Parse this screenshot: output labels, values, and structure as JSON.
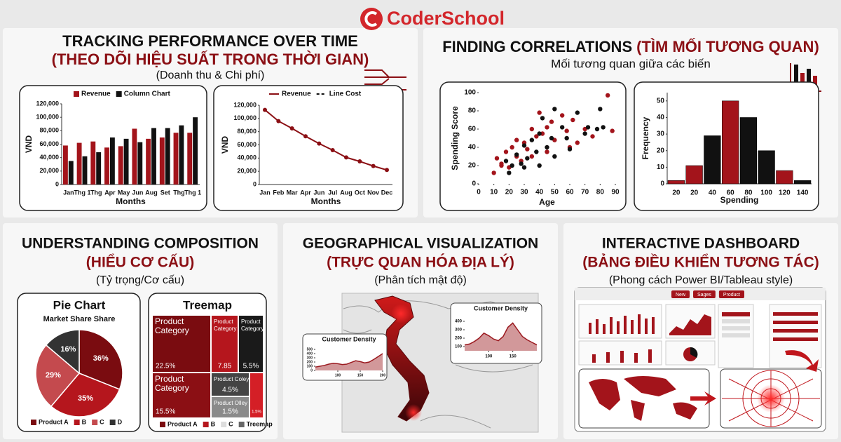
{
  "brand": "CoderSchool",
  "sections": [
    {
      "title": "TRACKING PERFORMANCE OVER TIME",
      "subtitle": "(THEO DÕI HIỆU SUẤT TRONG THỜI GIAN)",
      "caption": "(Doanh thu & Chi phí)"
    },
    {
      "title": "FINDING CORRELATIONS",
      "subtitle": "(TÌM MỐI TƯƠNG QUAN)",
      "caption": "Mối tương quan giữa các biến"
    },
    {
      "title": "UNDERSTANDING COMPOSITION",
      "subtitle": "(HIỂU CƠ CẤU)",
      "caption": "(Tỷ trọng/Cơ cấu)"
    },
    {
      "title": "GEOGRAPHICAL VISUALIZATION",
      "subtitle": "(TRỰC QUAN HÓA ĐỊA LÝ)",
      "caption": "(Phân tích mật độ)"
    },
    {
      "title": "INTERACTIVE DASHBOARD",
      "subtitle": "(BẢNG ĐIỀU KHIỂN TƯƠNG TÁC)",
      "caption": "(Phong cách Power BI/Tableau style)"
    }
  ],
  "dashboard": {
    "buttons": [
      "New",
      "Sages",
      "Product"
    ]
  },
  "chart_data": [
    {
      "type": "bar",
      "xlabel": "Months",
      "ylabel": "VND",
      "categories": [
        "Jan",
        "Thg 1",
        "Thg",
        "Apr",
        "May",
        "Jun",
        "Aug",
        "Set",
        "Thg",
        "Thg 1"
      ],
      "series": [
        {
          "name": "Revenue",
          "color": "#a3141b",
          "values": [
            58000,
            62000,
            64000,
            55000,
            57000,
            83000,
            68000,
            70000,
            77000,
            77000
          ]
        },
        {
          "name": "Column Chart",
          "color": "#111111",
          "values": [
            35000,
            42000,
            48000,
            70000,
            68000,
            63000,
            84000,
            84000,
            88000,
            100000
          ]
        }
      ],
      "ylim": [
        0,
        120000
      ],
      "yticks": [
        0,
        {
          "value": 20000,
          "label": "20,000"
        },
        {
          "value": 40000,
          "label": "40,000"
        },
        {
          "value": 60000,
          "label": "60,000"
        },
        {
          "value": 80000,
          "label": "80,000"
        },
        {
          "value": 100000,
          "label": "100,000"
        },
        {
          "value": 120000,
          "label": "120,000"
        }
      ]
    },
    {
      "type": "line",
      "xlabel": "Months",
      "ylabel": "VND",
      "categories": [
        "Jan",
        "Feb",
        "Mar",
        "Apr",
        "Jun",
        "Jul",
        "Aug",
        "Oct",
        "Nov",
        "Dec"
      ],
      "values": [
        113000,
        96000,
        85000,
        73000,
        62000,
        52000,
        41000,
        35000,
        28000,
        22000
      ],
      "color": "#8b0f14",
      "legend": [
        {
          "name": "Revenue",
          "style": "solid"
        },
        {
          "name": "Line Cost",
          "style": "dashed"
        }
      ],
      "ylim": [
        0,
        120000
      ],
      "yticks": [
        0,
        {
          "value": 20000,
          "label": "20,000"
        },
        {
          "value": 40000,
          "label": "40,000"
        },
        {
          "value": 60000,
          "label": "60,000"
        },
        {
          "value": 80000,
          "label": "80,000"
        },
        {
          "value": 100000,
          "label": "100,000"
        },
        {
          "value": 120000,
          "label": "120,000"
        }
      ]
    },
    {
      "type": "scatter",
      "xlabel": "Age",
      "ylabel": "Spending Score",
      "series": [
        {
          "color": "#a3141b",
          "x": [
            10,
            12,
            15,
            18,
            20,
            22,
            25,
            28,
            30,
            32,
            35,
            38,
            40,
            42,
            45,
            48,
            50,
            55,
            58,
            60,
            62,
            65,
            70,
            75,
            85,
            88,
            25,
            35,
            45,
            15
          ],
          "y": [
            12,
            28,
            22,
            35,
            18,
            40,
            30,
            25,
            45,
            38,
            60,
            52,
            78,
            55,
            35,
            68,
            48,
            75,
            58,
            40,
            70,
            45,
            60,
            52,
            97,
            58,
            48,
            30,
            62,
            20
          ]
        },
        {
          "color": "#111111",
          "x": [
            18,
            20,
            22,
            25,
            28,
            30,
            32,
            35,
            38,
            40,
            42,
            45,
            48,
            50,
            55,
            58,
            60,
            65,
            70,
            72,
            78,
            80,
            82,
            30,
            40,
            50
          ],
          "y": [
            25,
            12,
            20,
            32,
            22,
            42,
            28,
            48,
            35,
            55,
            72,
            40,
            50,
            82,
            62,
            50,
            38,
            78,
            55,
            62,
            60,
            82,
            62,
            18,
            20,
            30
          ]
        }
      ],
      "xlim": [
        0,
        90
      ],
      "xticks": [
        0,
        10,
        20,
        30,
        40,
        50,
        60,
        70,
        80,
        90
      ],
      "ylim": [
        0,
        100
      ],
      "yticks": [
        0,
        20,
        40,
        60,
        80,
        100
      ]
    },
    {
      "type": "bar",
      "xlabel": "Spending",
      "ylabel": "Frequency",
      "categories": [
        "20",
        "20",
        "40",
        "60",
        "80",
        "100",
        "120",
        "140"
      ],
      "values": [
        2,
        11,
        29,
        50,
        40,
        20,
        8,
        2
      ],
      "colors": [
        "#a3141b",
        "#a3141b",
        "#111111",
        "#a3141b",
        "#111111",
        "#111111",
        "#a3141b",
        "#111111"
      ],
      "ylim": [
        0,
        55
      ],
      "yticks": [
        0,
        10,
        20,
        30,
        40,
        50
      ]
    },
    {
      "type": "pie",
      "title": "Pie Chart",
      "subtitle": "Market Share Share",
      "categories": [
        "Product A",
        "B",
        "C",
        "D"
      ],
      "values": [
        36,
        35,
        29,
        16
      ],
      "value_labels": [
        "36%",
        "35%",
        "29%",
        "16%"
      ],
      "colors": [
        "#7a0c10",
        "#b5161d",
        "#c44a4e",
        "#333333"
      ]
    },
    {
      "type": "treemap",
      "title": "Treemap",
      "labels": [
        "Product Category",
        "Product Category",
        "Product Category",
        "Product Category",
        "Product Coley",
        "Product Olley",
        null
      ],
      "values": [
        22.5,
        7.85,
        5.5,
        15.5,
        4.5,
        1.5,
        1.5
      ],
      "value_labels": [
        "22.5%",
        "7.85",
        "5.5%",
        "15.5%",
        "4.5%",
        "1.5%",
        "1.5%"
      ],
      "colors": [
        "#7a0c10",
        "#b5161d",
        "#1a1a1a",
        "#8b0f14",
        "#444444",
        "#8a8a8a",
        "#d41f26"
      ],
      "legend": [
        {
          "name": "Product A",
          "color": "#7a0c10"
        },
        {
          "name": "B",
          "color": "#b5161d"
        },
        {
          "name": "C",
          "color": "#dddddd"
        },
        {
          "name": "Treemap",
          "color": "#666666"
        }
      ]
    },
    {
      "type": "area",
      "title": "Customer Density",
      "color": "#9b1a20",
      "x": [
        50,
        60,
        70,
        80,
        90,
        100,
        110,
        120,
        130,
        140,
        150,
        160,
        170,
        180,
        190,
        200
      ],
      "values": [
        80,
        100,
        120,
        150,
        170,
        160,
        140,
        150,
        190,
        230,
        210,
        180,
        200,
        260,
        330,
        400
      ],
      "xlim": [
        50,
        200
      ],
      "xticks": [
        100,
        150,
        200
      ],
      "ylim": [
        0,
        500
      ],
      "yticks": [
        0,
        100,
        200,
        300,
        400,
        500
      ]
    },
    {
      "type": "area",
      "title": "Customer Density",
      "color": "#9b1a20",
      "x": [
        50,
        60,
        70,
        80,
        90,
        100,
        110,
        120,
        130,
        140,
        150,
        160,
        170,
        180,
        190,
        200
      ],
      "values": [
        120,
        130,
        160,
        200,
        260,
        230,
        190,
        170,
        220,
        330,
        380,
        300,
        220,
        180,
        150,
        120
      ],
      "xlim": [
        50,
        200
      ],
      "xticks": [
        100,
        150
      ],
      "ylim": [
        50,
        450
      ],
      "yticks": [
        100,
        200,
        300,
        400
      ]
    }
  ]
}
